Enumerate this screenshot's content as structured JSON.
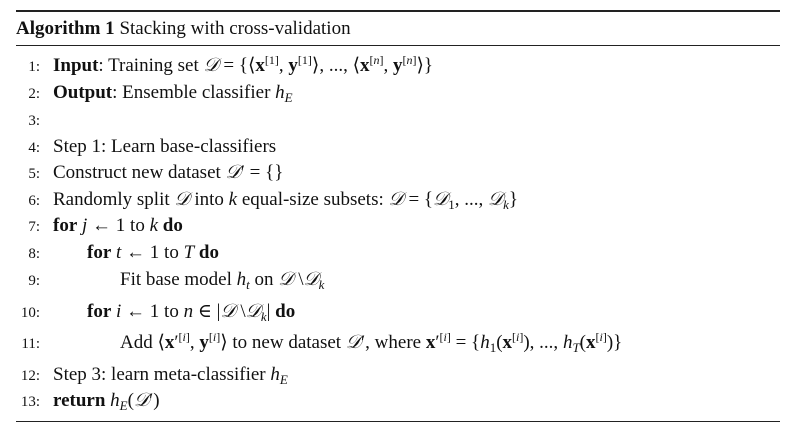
{
  "algorithm": {
    "label": "Algorithm 1",
    "title": "Stacking with cross-validation",
    "lines": [
      {
        "num": "1:",
        "kw": "Input",
        "text": ": Training set 𝒟 = {⟨x[1], y[1]⟩, ..., ⟨x[n], y[n]⟩}"
      },
      {
        "num": "2:",
        "kw": "Output",
        "text": ": Ensemble classifier h_E"
      },
      {
        "num": "3:",
        "text": ""
      },
      {
        "num": "4:",
        "text": "Step 1: Learn base-classifiers"
      },
      {
        "num": "5:",
        "text": "Construct new dataset 𝒟′ = {}"
      },
      {
        "num": "6:",
        "text": "Randomly split 𝒟 into k equal-size subsets: 𝒟 = {𝒟1, ..., 𝒟k}"
      },
      {
        "num": "7:",
        "kw": "for",
        "text": "j ← 1 to k",
        "kw2": "do"
      },
      {
        "num": "8:",
        "kw": "for",
        "text": "t ← 1 to T",
        "kw2": "do"
      },
      {
        "num": "9:",
        "text": "Fit base model h_t on 𝒟 \\𝒟k"
      },
      {
        "num": "10:",
        "kw": "for",
        "text": "i ← 1 to n ∈ |𝒟 \\𝒟k|",
        "kw2": "do"
      },
      {
        "num": "11:",
        "text": "Add ⟨x′[i], y[i]⟩ to new dataset 𝒟′, where x′[i] = {h1(x[i]), ..., hT(x[i])}"
      },
      {
        "num": "12:",
        "text": "Step 3: learn meta-classifier h_E"
      },
      {
        "num": "13:",
        "kw": "return",
        "text": "h_E(𝒟′)"
      }
    ]
  }
}
